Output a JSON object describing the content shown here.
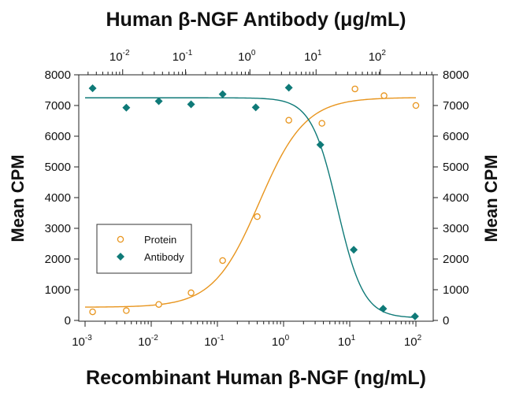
{
  "chart_data": {
    "type": "scatter",
    "title": "Human β-NGF Antibody (μg/mL)",
    "xlabel": "Recombinant Human β-NGF (ng/mL)",
    "ylabel_left": "Mean CPM",
    "ylabel_right": "Mean CPM",
    "x_scale": "log",
    "xlim": [
      0.001,
      100
    ],
    "ylim": [
      0,
      8000
    ],
    "top_x_scale": "log",
    "x_ticks": [
      {
        "base": "10",
        "exp": "-3",
        "value": 0.001
      },
      {
        "base": "10",
        "exp": "-2",
        "value": 0.01
      },
      {
        "base": "10",
        "exp": "-1",
        "value": 0.1
      },
      {
        "base": "10",
        "exp": "0",
        "value": 1
      },
      {
        "base": "10",
        "exp": "1",
        "value": 10
      },
      {
        "base": "10",
        "exp": "2",
        "value": 100
      }
    ],
    "top_x_ticks": [
      {
        "base": "10",
        "exp": "-2",
        "value": 0.01,
        "at_bottom_x": 0.0037
      },
      {
        "base": "10",
        "exp": "-1",
        "value": 0.1,
        "at_bottom_x": 0.033
      },
      {
        "base": "10",
        "exp": "0",
        "value": 1,
        "at_bottom_x": 0.31
      },
      {
        "base": "10",
        "exp": "1",
        "value": 10,
        "at_bottom_x": 3.1
      },
      {
        "base": "10",
        "exp": "2",
        "value": 100,
        "at_bottom_x": 29
      }
    ],
    "y_ticks": [
      "0",
      "1000",
      "2000",
      "3000",
      "4000",
      "5000",
      "6000",
      "7000",
      "8000"
    ],
    "y_tick_values": [
      0,
      1000,
      2000,
      3000,
      4000,
      5000,
      6000,
      7000,
      8000
    ],
    "legend": {
      "position": "lower-left"
    },
    "series": [
      {
        "name": "Protein",
        "marker": "open-circle",
        "color": "#E8951E",
        "x": [
          0.0013,
          0.0042,
          0.013,
          0.04,
          0.12,
          0.4,
          1.2,
          3.8,
          12,
          33,
          100
        ],
        "y": [
          280,
          320,
          520,
          900,
          1950,
          3380,
          6520,
          6420,
          7540,
          7320,
          7000
        ],
        "fit": {
          "bottom": 430,
          "top": 7260,
          "ec50": 0.43,
          "hill": 1.25
        }
      },
      {
        "name": "Antibody",
        "marker": "filled-diamond",
        "color": "#0F7A78",
        "x": [
          0.0013,
          0.0042,
          0.013,
          0.04,
          0.12,
          0.38,
          1.2,
          3.6,
          11.5,
          32,
          97
        ],
        "y": [
          7560,
          6930,
          7140,
          7040,
          7370,
          6940,
          7580,
          5720,
          2300,
          380,
          130
        ],
        "fit": {
          "bottom": 80,
          "top": 7250,
          "ec50": 6.5,
          "hill": 2.2
        }
      }
    ]
  }
}
